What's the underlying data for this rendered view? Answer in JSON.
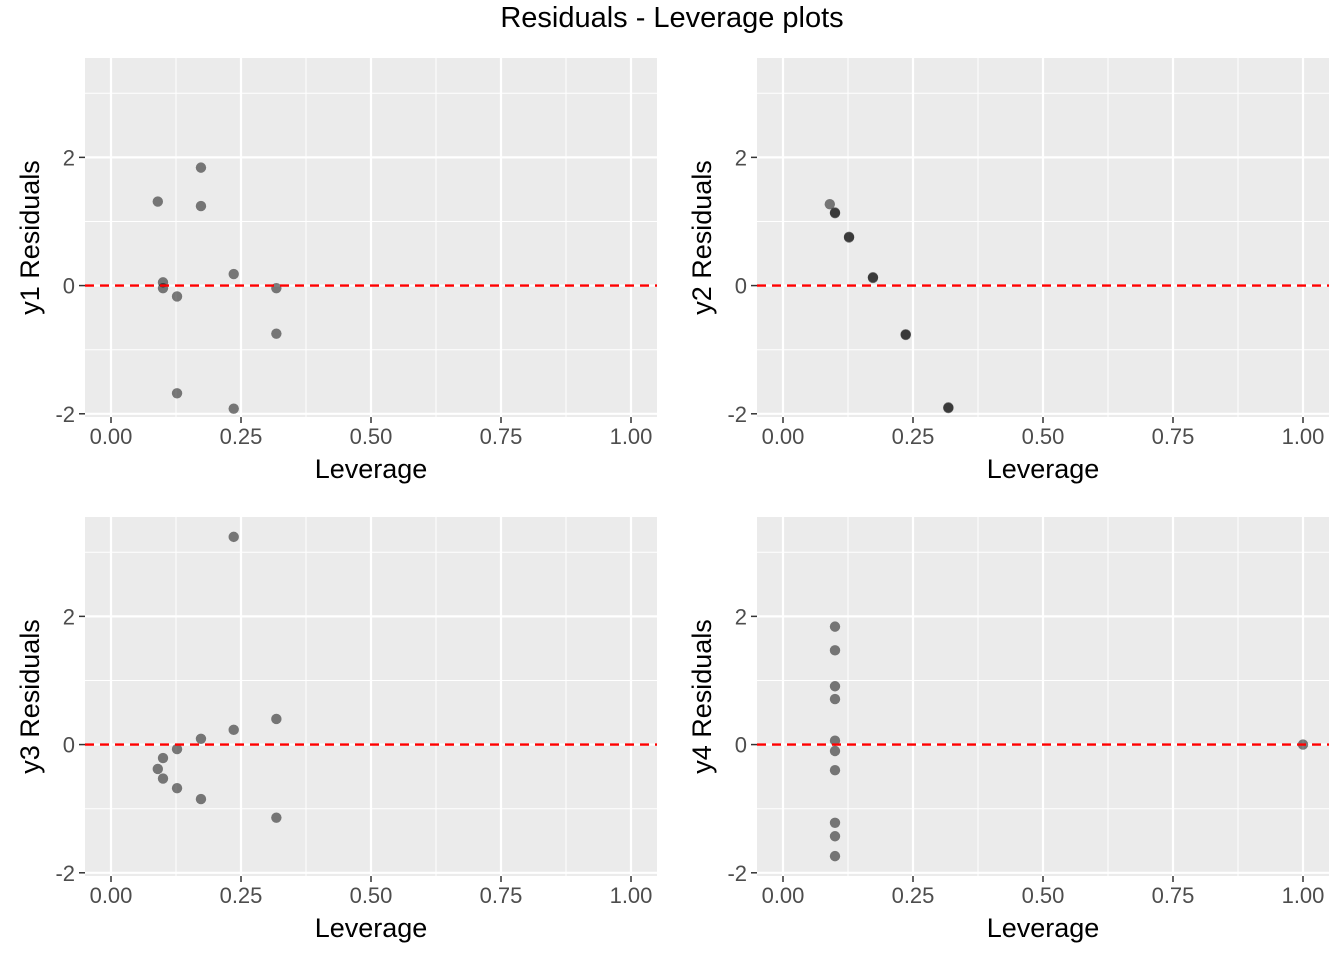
{
  "figure": {
    "title": "Residuals - Leverage plots"
  },
  "colors": {
    "panel_bg": "#EBEBEB",
    "grid": "#FFFFFF",
    "point": "#000000",
    "point_opacity": 0.5,
    "refline": "#FF0000",
    "tick": "#333333",
    "tick_label": "#4D4D4D"
  },
  "chart_data": [
    {
      "type": "scatter",
      "xlabel": "Leverage",
      "ylabel": "y1 Residuals",
      "xlim": [
        -0.05,
        1.05
      ],
      "ylim": [
        -2.05,
        3.55
      ],
      "xticks": [
        0.0,
        0.25,
        0.5,
        0.75,
        1.0
      ],
      "xtick_labels": [
        "0.00",
        "0.25",
        "0.50",
        "0.75",
        "1.00"
      ],
      "yticks": [
        -2,
        0,
        2
      ],
      "ytick_labels": [
        "-2",
        "0",
        "2"
      ],
      "grid": true,
      "hline": {
        "y": 0,
        "style": "dashed",
        "color": "#FF0000"
      },
      "points": [
        {
          "x": 0.09,
          "y": 1.31
        },
        {
          "x": 0.1,
          "y": 0.05
        },
        {
          "x": 0.1,
          "y": -0.04
        },
        {
          "x": 0.127,
          "y": -0.17
        },
        {
          "x": 0.127,
          "y": -1.68
        },
        {
          "x": 0.173,
          "y": 1.84
        },
        {
          "x": 0.173,
          "y": 1.24
        },
        {
          "x": 0.236,
          "y": 0.18
        },
        {
          "x": 0.236,
          "y": -1.92
        },
        {
          "x": 0.318,
          "y": -0.04
        },
        {
          "x": 0.318,
          "y": -0.75
        }
      ]
    },
    {
      "type": "scatter",
      "xlabel": "Leverage",
      "ylabel": "y2 Residuals",
      "xlim": [
        -0.05,
        1.05
      ],
      "ylim": [
        -2.05,
        3.55
      ],
      "xticks": [
        0.0,
        0.25,
        0.5,
        0.75,
        1.0
      ],
      "xtick_labels": [
        "0.00",
        "0.25",
        "0.50",
        "0.75",
        "1.00"
      ],
      "yticks": [
        -2,
        0,
        2
      ],
      "ytick_labels": [
        "-2",
        "0",
        "2"
      ],
      "grid": true,
      "hline": {
        "y": 0,
        "style": "dashed",
        "color": "#FF0000"
      },
      "points": [
        {
          "x": 0.09,
          "y": 1.27
        },
        {
          "x": 0.1,
          "y": 1.14
        },
        {
          "x": 0.1,
          "y": 1.13
        },
        {
          "x": 0.127,
          "y": 0.76
        },
        {
          "x": 0.127,
          "y": 0.75
        },
        {
          "x": 0.173,
          "y": 0.13
        },
        {
          "x": 0.173,
          "y": 0.12
        },
        {
          "x": 0.236,
          "y": -0.76
        },
        {
          "x": 0.236,
          "y": -0.77
        },
        {
          "x": 0.318,
          "y": -1.9
        },
        {
          "x": 0.318,
          "y": -1.91
        }
      ]
    },
    {
      "type": "scatter",
      "xlabel": "Leverage",
      "ylabel": "y3 Residuals",
      "xlim": [
        -0.05,
        1.05
      ],
      "ylim": [
        -2.05,
        3.55
      ],
      "xticks": [
        0.0,
        0.25,
        0.5,
        0.75,
        1.0
      ],
      "xtick_labels": [
        "0.00",
        "0.25",
        "0.50",
        "0.75",
        "1.00"
      ],
      "yticks": [
        -2,
        0,
        2
      ],
      "ytick_labels": [
        "-2",
        "0",
        "2"
      ],
      "grid": true,
      "hline": {
        "y": 0,
        "style": "dashed",
        "color": "#FF0000"
      },
      "points": [
        {
          "x": 0.09,
          "y": -0.38
        },
        {
          "x": 0.1,
          "y": -0.21
        },
        {
          "x": 0.1,
          "y": -0.53
        },
        {
          "x": 0.127,
          "y": -0.07
        },
        {
          "x": 0.127,
          "y": -0.68
        },
        {
          "x": 0.173,
          "y": 0.09
        },
        {
          "x": 0.173,
          "y": -0.85
        },
        {
          "x": 0.236,
          "y": 3.24
        },
        {
          "x": 0.236,
          "y": 0.23
        },
        {
          "x": 0.318,
          "y": 0.4
        },
        {
          "x": 0.318,
          "y": -1.14
        }
      ]
    },
    {
      "type": "scatter",
      "xlabel": "Leverage",
      "ylabel": "y4 Residuals",
      "xlim": [
        -0.05,
        1.05
      ],
      "ylim": [
        -2.05,
        3.55
      ],
      "xticks": [
        0.0,
        0.25,
        0.5,
        0.75,
        1.0
      ],
      "xtick_labels": [
        "0.00",
        "0.25",
        "0.50",
        "0.75",
        "1.00"
      ],
      "yticks": [
        -2,
        0,
        2
      ],
      "ytick_labels": [
        "-2",
        "0",
        "2"
      ],
      "grid": true,
      "hline": {
        "y": 0,
        "style": "dashed",
        "color": "#FF0000"
      },
      "points": [
        {
          "x": 0.1,
          "y": 1.84
        },
        {
          "x": 0.1,
          "y": 1.47
        },
        {
          "x": 0.1,
          "y": 0.91
        },
        {
          "x": 0.1,
          "y": 0.71
        },
        {
          "x": 0.1,
          "y": 0.06
        },
        {
          "x": 0.1,
          "y": -0.1
        },
        {
          "x": 0.1,
          "y": -0.4
        },
        {
          "x": 0.1,
          "y": -1.22
        },
        {
          "x": 0.1,
          "y": -1.43
        },
        {
          "x": 0.1,
          "y": -1.74
        },
        {
          "x": 1.0,
          "y": 0.0
        }
      ]
    }
  ]
}
